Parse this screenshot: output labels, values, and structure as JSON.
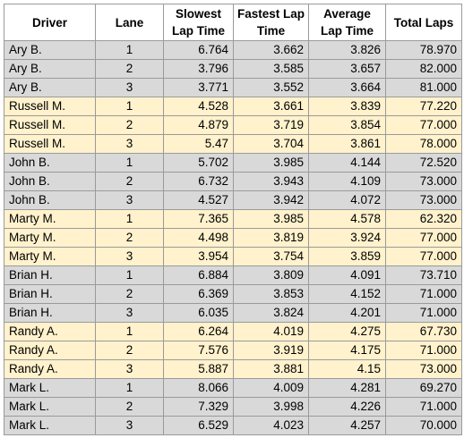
{
  "headers": [
    "Driver",
    "Lane",
    "Slowest Lap Time",
    "Fastest Lap Time",
    "Average Lap Time",
    "Total Laps"
  ],
  "colors": {
    "grey_row": "#d9d9d9",
    "yellow_row": "#fff2cc",
    "grid": "#9a9a9a"
  },
  "rows": [
    {
      "driver": "Ary B.",
      "lane": "1",
      "slowest": "6.764",
      "fastest": "3.662",
      "average": "3.826",
      "total": "78.970",
      "band": "grey"
    },
    {
      "driver": "Ary B.",
      "lane": "2",
      "slowest": "3.796",
      "fastest": "3.585",
      "average": "3.657",
      "total": "82.000",
      "band": "grey"
    },
    {
      "driver": "Ary B.",
      "lane": "3",
      "slowest": "3.771",
      "fastest": "3.552",
      "average": "3.664",
      "total": "81.000",
      "band": "grey"
    },
    {
      "driver": "Russell M.",
      "lane": "1",
      "slowest": "4.528",
      "fastest": "3.661",
      "average": "3.839",
      "total": "77.220",
      "band": "yellow"
    },
    {
      "driver": "Russell M.",
      "lane": "2",
      "slowest": "4.879",
      "fastest": "3.719",
      "average": "3.854",
      "total": "77.000",
      "band": "yellow"
    },
    {
      "driver": "Russell M.",
      "lane": "3",
      "slowest": "5.47",
      "fastest": "3.704",
      "average": "3.861",
      "total": "78.000",
      "band": "yellow"
    },
    {
      "driver": "John B.",
      "lane": "1",
      "slowest": "5.702",
      "fastest": "3.985",
      "average": "4.144",
      "total": "72.520",
      "band": "grey"
    },
    {
      "driver": "John B.",
      "lane": "2",
      "slowest": "6.732",
      "fastest": "3.943",
      "average": "4.109",
      "total": "73.000",
      "band": "grey"
    },
    {
      "driver": "John B.",
      "lane": "3",
      "slowest": "4.527",
      "fastest": "3.942",
      "average": "4.072",
      "total": "73.000",
      "band": "grey"
    },
    {
      "driver": "Marty M.",
      "lane": "1",
      "slowest": "7.365",
      "fastest": "3.985",
      "average": "4.578",
      "total": "62.320",
      "band": "yellow"
    },
    {
      "driver": "Marty M.",
      "lane": "2",
      "slowest": "4.498",
      "fastest": "3.819",
      "average": "3.924",
      "total": "77.000",
      "band": "yellow"
    },
    {
      "driver": "Marty M.",
      "lane": "3",
      "slowest": "3.954",
      "fastest": "3.754",
      "average": "3.859",
      "total": "77.000",
      "band": "yellow"
    },
    {
      "driver": "Brian H.",
      "lane": "1",
      "slowest": "6.884",
      "fastest": "3.809",
      "average": "4.091",
      "total": "73.710",
      "band": "grey"
    },
    {
      "driver": "Brian H.",
      "lane": "2",
      "slowest": "6.369",
      "fastest": "3.853",
      "average": "4.152",
      "total": "71.000",
      "band": "grey"
    },
    {
      "driver": "Brian H.",
      "lane": "3",
      "slowest": "6.035",
      "fastest": "3.824",
      "average": "4.201",
      "total": "71.000",
      "band": "grey"
    },
    {
      "driver": "Randy A.",
      "lane": "1",
      "slowest": "6.264",
      "fastest": "4.019",
      "average": "4.275",
      "total": "67.730",
      "band": "yellow"
    },
    {
      "driver": "Randy A.",
      "lane": "2",
      "slowest": "7.576",
      "fastest": "3.919",
      "average": "4.175",
      "total": "71.000",
      "band": "yellow"
    },
    {
      "driver": "Randy A.",
      "lane": "3",
      "slowest": "5.887",
      "fastest": "3.881",
      "average": "4.15",
      "total": "73.000",
      "band": "yellow"
    },
    {
      "driver": "Mark L.",
      "lane": "1",
      "slowest": "8.066",
      "fastest": "4.009",
      "average": "4.281",
      "total": "69.270",
      "band": "grey"
    },
    {
      "driver": "Mark L.",
      "lane": "2",
      "slowest": "7.329",
      "fastest": "3.998",
      "average": "4.226",
      "total": "71.000",
      "band": "grey"
    },
    {
      "driver": "Mark L.",
      "lane": "3",
      "slowest": "6.529",
      "fastest": "4.023",
      "average": "4.257",
      "total": "70.000",
      "band": "grey"
    }
  ]
}
